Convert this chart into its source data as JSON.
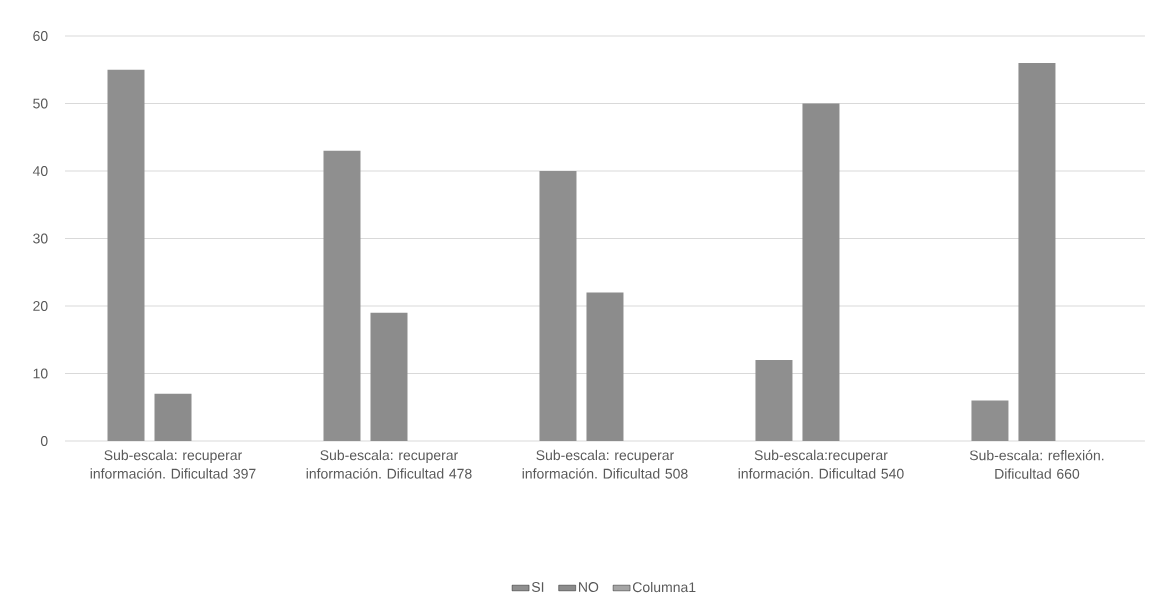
{
  "chart_data": {
    "type": "bar",
    "categories": [
      "Sub-escala: recuperar información. Dificultad 397",
      "Sub-escala: recuperar información. Dificultad 478",
      "Sub-escala: recuperar información. Dificultad 508",
      "Sub-escala:recuperar información. Dificultad 540",
      "Sub-escala: reflexión. Dificultad 660"
    ],
    "series": [
      {
        "name": "SI",
        "color": "#8f8f8f",
        "values": [
          55,
          43,
          40,
          12,
          6
        ]
      },
      {
        "name": "NO",
        "color": "#8c8c8c",
        "values": [
          7,
          19,
          22,
          50,
          56
        ]
      },
      {
        "name": "Columna1",
        "color": "#a5a5a5",
        "values": [
          null,
          null,
          null,
          null,
          null
        ]
      }
    ],
    "ylim": [
      0,
      60
    ],
    "yticks": [
      0,
      10,
      20,
      30,
      40,
      50,
      60
    ],
    "grid": "y",
    "legend": "bottom"
  }
}
